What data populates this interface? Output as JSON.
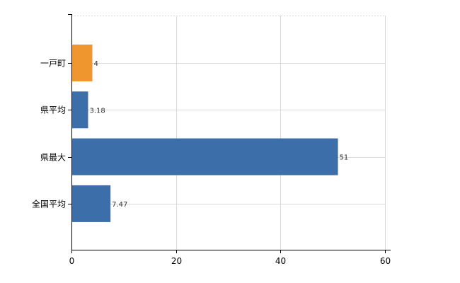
{
  "chart_data": {
    "type": "bar",
    "orientation": "horizontal",
    "categories": [
      "一戸町",
      "県平均",
      "県最大",
      "全国平均"
    ],
    "values": [
      4,
      3.18,
      51,
      7.47
    ],
    "data_labels": [
      "4",
      "3.18",
      "51",
      "7.47"
    ],
    "bar_colors": [
      "#f0962e",
      "#3c6eaa",
      "#3c6eaa",
      "#3c6eaa"
    ],
    "xlim": [
      0,
      60
    ],
    "x_ticks": [
      0,
      20,
      40,
      60
    ],
    "x_tick_labels": [
      "0",
      "20",
      "40",
      "60"
    ],
    "grid": true,
    "legend": false
  }
}
